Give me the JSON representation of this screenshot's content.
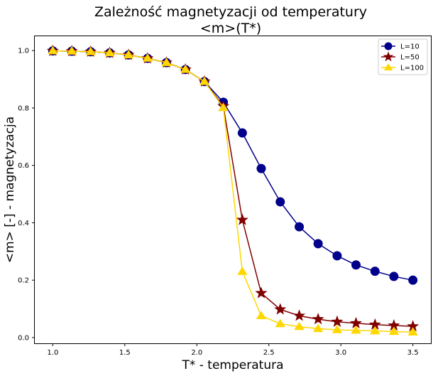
{
  "chart_data": {
    "type": "line",
    "title": "Zależność magnetyzacji od temperatury",
    "subtitle": "<m>(T*)",
    "xlabel": "T*  -  temperatura",
    "ylabel": "<m> [-]  -  magnetyzacja",
    "xlim": [
      0.875,
      3.625
    ],
    "ylim": [
      -0.02,
      1.05
    ],
    "xticks": [
      1.0,
      1.5,
      2.0,
      2.5,
      3.0,
      3.5
    ],
    "xtick_labels": [
      "1.0",
      "1.5",
      "2.0",
      "2.5",
      "3.0",
      "3.5"
    ],
    "yticks": [
      0.0,
      0.2,
      0.4,
      0.6,
      0.8,
      1.0
    ],
    "ytick_labels": [
      "0.0",
      "0.2",
      "0.4",
      "0.6",
      "0.8",
      "1.0"
    ],
    "grid": false,
    "legend_position": "top-right",
    "x": [
      1.0,
      1.132,
      1.263,
      1.395,
      1.526,
      1.658,
      1.789,
      1.921,
      2.053,
      2.184,
      2.316,
      2.447,
      2.579,
      2.711,
      2.842,
      2.974,
      3.105,
      3.237,
      3.368,
      3.5
    ],
    "series": [
      {
        "name": "L=10",
        "color": "#00008b",
        "marker": "circle",
        "values": [
          0.999,
          0.998,
          0.996,
          0.992,
          0.985,
          0.973,
          0.958,
          0.934,
          0.892,
          0.82,
          0.713,
          0.589,
          0.473,
          0.386,
          0.327,
          0.285,
          0.253,
          0.231,
          0.213,
          0.2
        ]
      },
      {
        "name": "L=50",
        "color": "#800000",
        "marker": "star",
        "values": [
          0.999,
          0.998,
          0.996,
          0.992,
          0.985,
          0.973,
          0.958,
          0.934,
          0.892,
          0.806,
          0.41,
          0.155,
          0.098,
          0.076,
          0.064,
          0.055,
          0.05,
          0.045,
          0.042,
          0.039
        ]
      },
      {
        "name": "L=100",
        "color": "#ffd700",
        "marker": "triangle",
        "values": [
          0.999,
          0.998,
          0.996,
          0.992,
          0.985,
          0.973,
          0.958,
          0.934,
          0.892,
          0.801,
          0.23,
          0.076,
          0.048,
          0.038,
          0.031,
          0.027,
          0.025,
          0.023,
          0.021,
          0.019
        ]
      }
    ]
  }
}
